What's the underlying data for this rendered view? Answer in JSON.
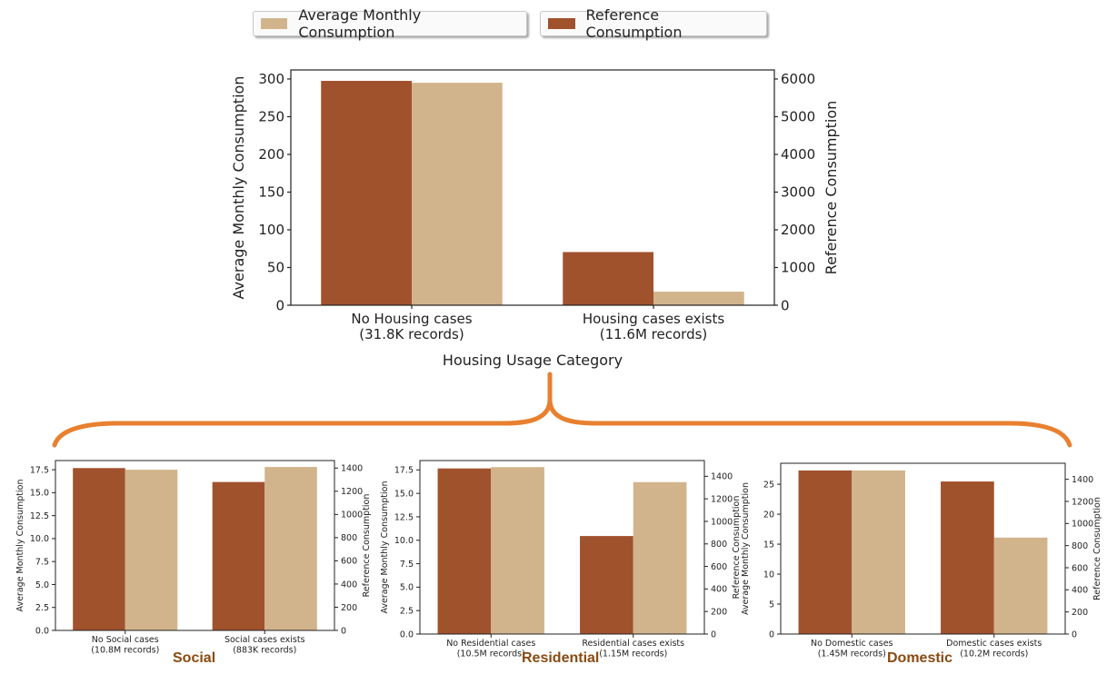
{
  "legend": {
    "avg_label": "Average Monthly Consumption",
    "ref_label": "Reference Consumption"
  },
  "colors": {
    "avg": "#d2b48c",
    "ref": "#a0522d",
    "brace": "#e8802f",
    "tag": "#8a4a10"
  },
  "tags": {
    "social": "Social",
    "residential": "Residential",
    "domestic": "Domestic"
  },
  "chart_data": [
    {
      "id": "main",
      "type": "bar",
      "xlabel": "Housing Usage Category",
      "ylabel_left": "Average Monthly Consumption",
      "ylabel_right": "Reference Consumption",
      "categories": [
        [
          "No Housing cases",
          "(31.8K records)"
        ],
        [
          "Housing cases exists",
          "(11.6M records)"
        ]
      ],
      "ylim_left": [
        0,
        312
      ],
      "ylim_right": [
        0,
        6240
      ],
      "yticks_left": [
        0,
        50,
        100,
        150,
        200,
        250,
        300
      ],
      "yticks_right": [
        0,
        1000,
        2000,
        3000,
        4000,
        5000,
        6000
      ],
      "series": [
        {
          "name": "Reference Consumption",
          "axis": "right",
          "values": [
            5950,
            1410
          ]
        },
        {
          "name": "Average Monthly Consumption",
          "axis": "left",
          "values": [
            295,
            18
          ]
        }
      ]
    },
    {
      "id": "social",
      "type": "bar",
      "ylabel_left": "Average Monthly Consumption",
      "ylabel_right": "Reference Consumption",
      "categories": [
        [
          "No Social cases",
          "(10.8M records)"
        ],
        [
          "Social cases exists",
          "(883K records)"
        ]
      ],
      "ylim_left": [
        0,
        18.5
      ],
      "ylim_right": [
        0,
        1465
      ],
      "yticks_left": [
        0.0,
        2.5,
        5.0,
        7.5,
        10.0,
        12.5,
        15.0,
        17.5
      ],
      "yticks_right": [
        0,
        200,
        400,
        600,
        800,
        1000,
        1200,
        1400
      ],
      "series": [
        {
          "name": "Reference Consumption",
          "axis": "right",
          "values": [
            1400,
            1280
          ]
        },
        {
          "name": "Average Monthly Consumption",
          "axis": "left",
          "values": [
            17.5,
            17.8
          ]
        }
      ]
    },
    {
      "id": "residential",
      "type": "bar",
      "ylabel_left": "Average Monthly Consumption",
      "ylabel_right": "Reference Consumption",
      "categories": [
        [
          "No Residential cases",
          "(10.5M records)"
        ],
        [
          "Residential cases exists",
          "(1.15M records)"
        ]
      ],
      "ylim_left": [
        0,
        18.5
      ],
      "ylim_right": [
        0,
        1540
      ],
      "yticks_left": [
        0.0,
        2.5,
        5.0,
        7.5,
        10.0,
        12.5,
        15.0,
        17.5
      ],
      "yticks_right": [
        0,
        200,
        400,
        600,
        800,
        1000,
        1200,
        1400
      ],
      "series": [
        {
          "name": "Reference Consumption",
          "axis": "right",
          "values": [
            1470,
            870
          ]
        },
        {
          "name": "Average Monthly Consumption",
          "axis": "left",
          "values": [
            17.8,
            16.2
          ]
        }
      ]
    },
    {
      "id": "domestic",
      "type": "bar",
      "ylabel_left": "Average Monthly Consumption",
      "ylabel_right": "Reference Consumption",
      "categories": [
        [
          "No Domestic cases",
          "(1.45M records)"
        ],
        [
          "Domestic cases exists",
          "(10.2M records)"
        ]
      ],
      "ylim_left": [
        0,
        28.5
      ],
      "ylim_right": [
        0,
        1545
      ],
      "yticks_left": [
        0,
        5,
        10,
        15,
        20,
        25
      ],
      "yticks_right": [
        0,
        200,
        400,
        600,
        800,
        1000,
        1200,
        1400
      ],
      "series": [
        {
          "name": "Reference Consumption",
          "axis": "right",
          "values": [
            1480,
            1380
          ]
        },
        {
          "name": "Average Monthly Consumption",
          "axis": "left",
          "values": [
            27.3,
            16.1
          ]
        }
      ]
    }
  ]
}
